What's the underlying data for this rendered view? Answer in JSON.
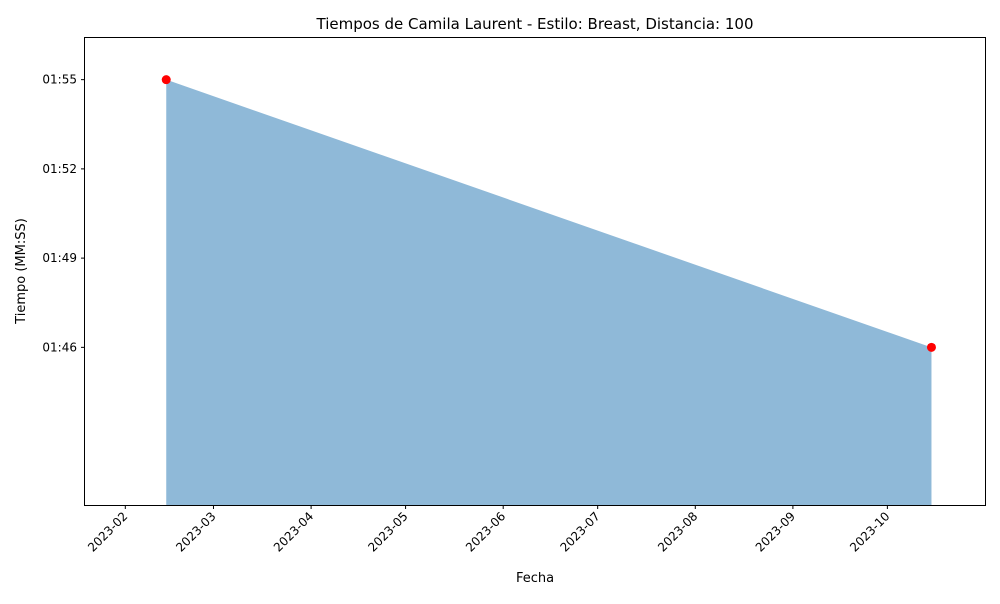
{
  "chart_data": {
    "type": "area",
    "title": "Tiempos de Camila Laurent - Estilo: Breast, Distancia: 100",
    "xlabel": "Fecha",
    "ylabel": "Tiempo (MM:SS)",
    "x_ticks": [
      "2023-02",
      "2023-03",
      "2023-04",
      "2023-05",
      "2023-06",
      "2023-07",
      "2023-08",
      "2023-09",
      "2023-10"
    ],
    "y_ticks": [
      {
        "label": "01:46",
        "seconds": 106
      },
      {
        "label": "01:49",
        "seconds": 109
      },
      {
        "label": "01:52",
        "seconds": 112
      },
      {
        "label": "01:55",
        "seconds": 115
      }
    ],
    "ylim_seconds": [
      100.7,
      116.4
    ],
    "xlim_days": [
      -12.8,
      273
    ],
    "points": [
      {
        "date": "2023-02-14",
        "day": 13,
        "seconds": 115,
        "label": "01:55"
      },
      {
        "date": "2023-10-15",
        "day": 256,
        "seconds": 106,
        "label": "01:46"
      }
    ],
    "colors": {
      "fill": "#8fb9d8",
      "marker": "#ff0000"
    }
  }
}
